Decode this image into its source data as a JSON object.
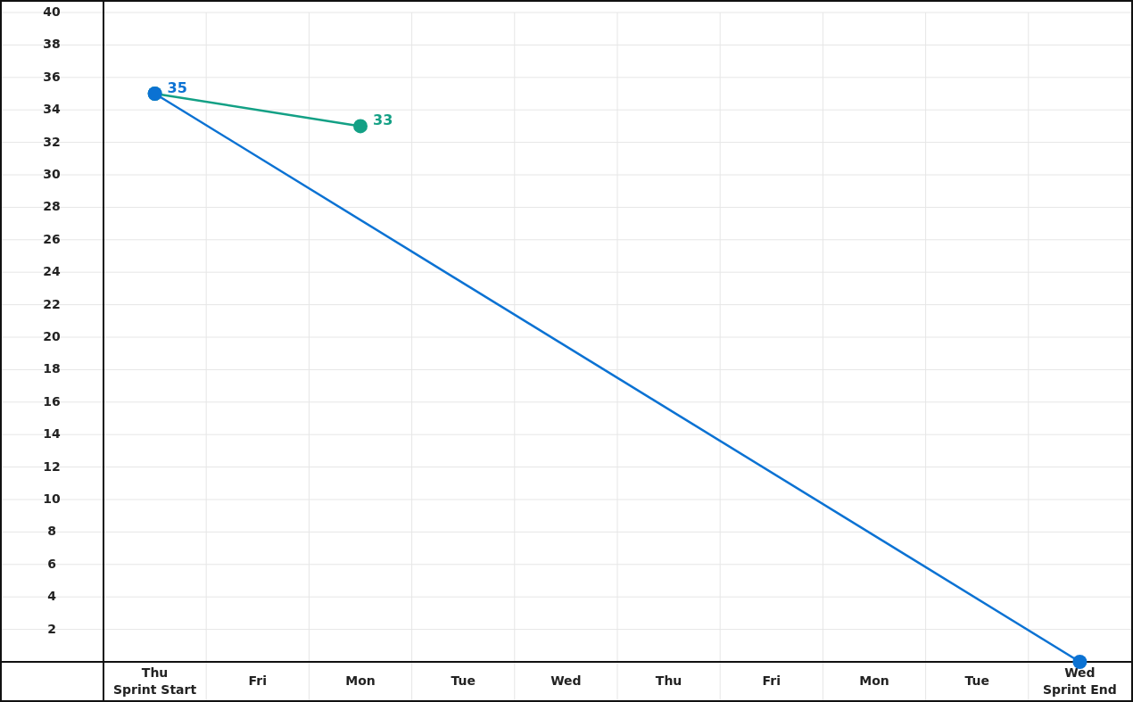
{
  "chart_data": {
    "type": "line",
    "ylim": [
      0,
      40
    ],
    "categories": [
      "Thu\nSprint Start",
      "Fri",
      "Mon",
      "Tue",
      "Wed",
      "Thu",
      "Fri",
      "Mon",
      "Tue",
      "Wed\nSprint End"
    ],
    "yticks": [
      2,
      4,
      6,
      8,
      10,
      12,
      14,
      16,
      18,
      20,
      22,
      24,
      26,
      28,
      30,
      32,
      34,
      36,
      38,
      40
    ],
    "grid": true,
    "marker": "circle",
    "series": [
      {
        "color": "#13a085",
        "values": [
          35,
          null,
          33,
          null,
          null,
          null,
          null,
          null,
          null,
          null
        ],
        "value_labels": [
          null,
          null,
          "33",
          null,
          null,
          null,
          null,
          null,
          null,
          null
        ]
      },
      {
        "color": "#0b72d3",
        "values": [
          35,
          null,
          null,
          null,
          null,
          null,
          null,
          null,
          null,
          0
        ],
        "value_labels": [
          "35",
          null,
          null,
          null,
          null,
          null,
          null,
          null,
          null,
          null
        ]
      }
    ]
  }
}
